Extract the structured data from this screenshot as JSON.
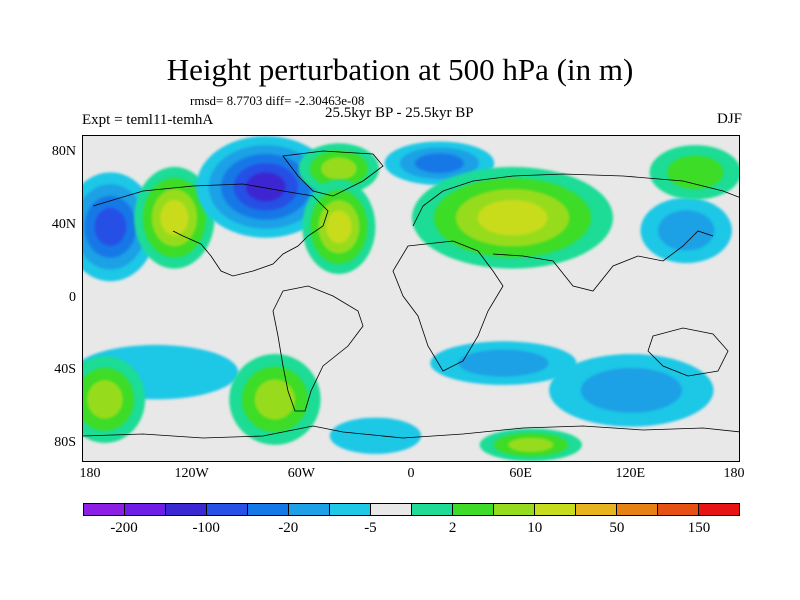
{
  "title": "Height perturbation at 500 hPa (in m)",
  "stats_text": "rmsd= 8.7703 diff= -2.30463e-08",
  "left_string": "Expt = teml11-temhA",
  "center_string": "25.5kyr BP - 25.5kyr BP",
  "right_string": "DJF",
  "lat_ticks": [
    {
      "label": "80N",
      "lat": 80
    },
    {
      "label": "40N",
      "lat": 40
    },
    {
      "label": "0",
      "lat": 0
    },
    {
      "label": "40S",
      "lat": -40
    },
    {
      "label": "80S",
      "lat": -80
    }
  ],
  "lon_ticks": [
    {
      "label": "180",
      "lon": -180
    },
    {
      "label": "120W",
      "lon": -120
    },
    {
      "label": "60W",
      "lon": -60
    },
    {
      "label": "0",
      "lon": 0
    },
    {
      "label": "60E",
      "lon": 60
    },
    {
      "label": "120E",
      "lon": 120
    },
    {
      "label": "180",
      "lon": 180
    }
  ],
  "colorbar": {
    "colors": [
      "#8c1ee6",
      "#6e1ee6",
      "#3c28d2",
      "#2850e6",
      "#1478e6",
      "#1ea0e6",
      "#1ec8e6",
      "#e8e8e8",
      "#1edc96",
      "#3cdc28",
      "#96dc1e",
      "#c8dc1e",
      "#e6b41e",
      "#e68214",
      "#e65014",
      "#e61414"
    ],
    "labels": [
      {
        "text": "-200",
        "boundary": 1
      },
      {
        "text": "-100",
        "boundary": 3
      },
      {
        "text": "-20",
        "boundary": 5
      },
      {
        "text": "-5",
        "boundary": 7
      },
      {
        "text": "2",
        "boundary": 9
      },
      {
        "text": "10",
        "boundary": 11
      },
      {
        "text": "50",
        "boundary": 13
      },
      {
        "text": "150",
        "boundary": 15
      }
    ]
  },
  "map_blobs": [
    {
      "lon": -165,
      "lat": 40,
      "rx": 25,
      "ry": 30,
      "colors": [
        "#1ec8e6",
        "#1ea0e6",
        "#1478e6",
        "#2850e6"
      ]
    },
    {
      "lon": -130,
      "lat": 45,
      "rx": 22,
      "ry": 28,
      "colors": [
        "#1edc96",
        "#3cdc28",
        "#96dc1e",
        "#c8dc1e"
      ]
    },
    {
      "lon": -80,
      "lat": 62,
      "rx": 38,
      "ry": 28,
      "colors": [
        "#1ec8e6",
        "#1ea0e6",
        "#1478e6",
        "#2850e6",
        "#3c28d2"
      ]
    },
    {
      "lon": -40,
      "lat": 72,
      "rx": 22,
      "ry": 14,
      "colors": [
        "#1edc96",
        "#3cdc28",
        "#96dc1e"
      ]
    },
    {
      "lon": -40,
      "lat": 40,
      "rx": 20,
      "ry": 26,
      "colors": [
        "#1edc96",
        "#3cdc28",
        "#96dc1e",
        "#c8dc1e"
      ]
    },
    {
      "lon": 15,
      "lat": 75,
      "rx": 30,
      "ry": 12,
      "colors": [
        "#1ec8e6",
        "#1ea0e6",
        "#1478e6"
      ]
    },
    {
      "lon": 55,
      "lat": 45,
      "rx": 55,
      "ry": 28,
      "colors": [
        "#1edc96",
        "#3cdc28",
        "#96dc1e",
        "#c8dc1e"
      ]
    },
    {
      "lon": 150,
      "lat": 38,
      "rx": 25,
      "ry": 18,
      "colors": [
        "#1ec8e6",
        "#1ea0e6"
      ]
    },
    {
      "lon": 155,
      "lat": 70,
      "rx": 25,
      "ry": 15,
      "colors": [
        "#1edc96",
        "#3cdc28"
      ]
    },
    {
      "lon": -140,
      "lat": -40,
      "rx": 45,
      "ry": 15,
      "colors": [
        "#1ec8e6"
      ]
    },
    {
      "lon": -168,
      "lat": -55,
      "rx": 22,
      "ry": 24,
      "colors": [
        "#1edc96",
        "#3cdc28",
        "#96dc1e"
      ]
    },
    {
      "lon": -75,
      "lat": -55,
      "rx": 25,
      "ry": 25,
      "colors": [
        "#1edc96",
        "#3cdc28",
        "#96dc1e"
      ]
    },
    {
      "lon": 50,
      "lat": -35,
      "rx": 40,
      "ry": 12,
      "colors": [
        "#1ec8e6",
        "#1ea0e6"
      ]
    },
    {
      "lon": 120,
      "lat": -50,
      "rx": 45,
      "ry": 20,
      "colors": [
        "#1ec8e6",
        "#1ea0e6"
      ]
    },
    {
      "lon": 65,
      "lat": -80,
      "rx": 28,
      "ry": 9,
      "colors": [
        "#1edc96",
        "#3cdc28",
        "#96dc1e"
      ]
    },
    {
      "lon": -20,
      "lat": -75,
      "rx": 25,
      "ry": 10,
      "colors": [
        "#1ec8e6"
      ]
    }
  ]
}
